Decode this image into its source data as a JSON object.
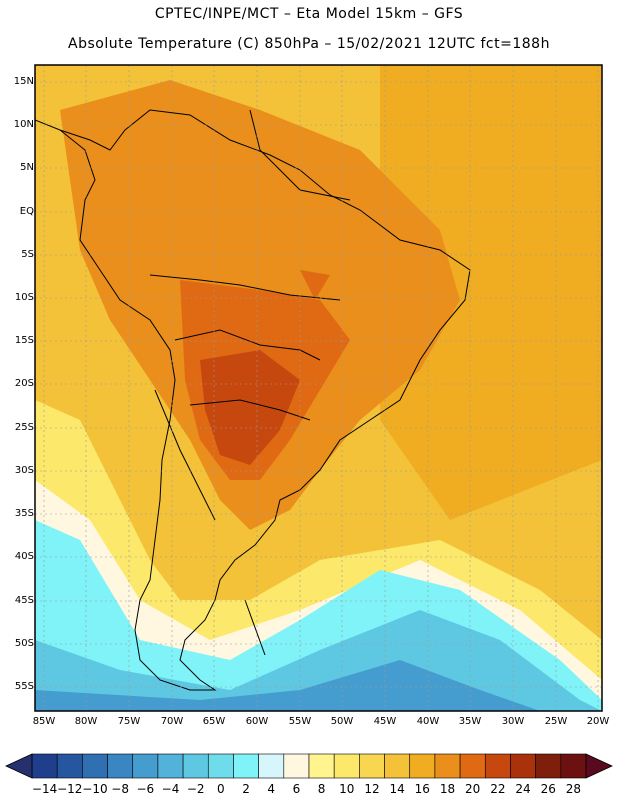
{
  "title": {
    "line1": "CPTEC/INPE/MCT –  Eta Model 15km – GFS",
    "line2": "Absolute Temperature (C) 850hPa – 15/02/2021 12UTC fct=188h"
  },
  "map": {
    "variable": "Absolute Temperature",
    "units": "C",
    "level": "850hPa",
    "lat_labels": [
      "15N",
      "10N",
      "5N",
      "EQ",
      "5S",
      "10S",
      "15S",
      "20S",
      "25S",
      "30S",
      "35S",
      "40S",
      "45S",
      "50S",
      "55S"
    ],
    "lon_labels": [
      "85W",
      "80W",
      "75W",
      "70W",
      "65W",
      "60W",
      "55W",
      "50W",
      "45W",
      "40W",
      "35W",
      "30W",
      "25W",
      "20W"
    ]
  },
  "colorbar": {
    "labels": [
      "-14",
      "-12",
      "-10",
      "-8",
      "-6",
      "-4",
      "-2",
      "0",
      "2",
      "4",
      "6",
      "8",
      "10",
      "12",
      "14",
      "16",
      "18",
      "20",
      "22",
      "24",
      "26",
      "28"
    ],
    "colors": [
      "#1f3f8c",
      "#2656a0",
      "#2f6fb2",
      "#3a86c2",
      "#459ccf",
      "#52b2da",
      "#5ec8e3",
      "#6fdcec",
      "#7ff3f7",
      "#d6f6fb",
      "#fff7e0",
      "#fff48d",
      "#fce86a",
      "#f8d650",
      "#f3c238",
      "#f0ad22",
      "#ea8f1c",
      "#e06a14",
      "#c6480f",
      "#a9310c",
      "#7e1e0c",
      "#6d1010"
    ],
    "under_color": "#25306e",
    "over_color": "#5a0a1e"
  }
}
